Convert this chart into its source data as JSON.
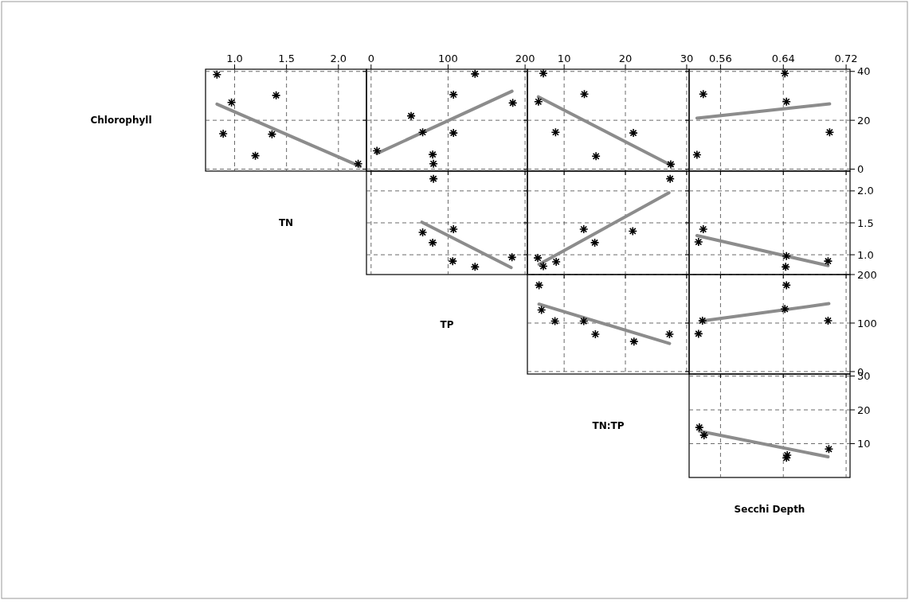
{
  "chart_data": [
    {
      "type": "scatter",
      "ylabel": "Chlorophyll",
      "xlim": [
        0.72,
        2.27
      ],
      "xticks": [
        {
          "value": 1,
          "label": "1.0"
        },
        1.5,
        {
          "value": 2,
          "label": "2.0"
        }
      ],
      "ylim": [
        -0.8,
        40.9
      ],
      "yticks": [
        0,
        20,
        40
      ],
      "tick_labels": "x",
      "grid": true,
      "series": [
        {
          "marker": "cross",
          "color": "#000000",
          "x": [
            0.83,
            0.97,
            1.4,
            0.89,
            1.36,
            1.2,
            2.19
          ],
          "values": [
            38.7,
            27.3,
            30.2,
            14.5,
            14.3,
            5.5,
            2.2
          ]
        },
        {
          "type": "line",
          "color": "#8c8c8c",
          "x": [
            0.83,
            2.21
          ],
          "values": [
            26.6,
            1.1
          ]
        }
      ]
    },
    {
      "type": "scatter",
      "xlim": [
        -6,
        203
      ],
      "xticks": [
        0,
        100,
        200
      ],
      "ylim": [
        -0.8,
        40.9
      ],
      "yticks": [
        0,
        20,
        40
      ],
      "tick_labels": "x",
      "grid": true,
      "series": [
        {
          "marker": "cross",
          "color": "#000000",
          "x": [
            7.6,
            52,
            67,
            107,
            107,
            135,
            184,
            80,
            81
          ],
          "values": [
            7.5,
            21.8,
            15.1,
            30.5,
            14.8,
            39,
            27.1,
            6,
            2.2
          ]
        },
        {
          "type": "line",
          "color": "#8c8c8c",
          "x": [
            7.6,
            183
          ],
          "values": [
            6.4,
            31.9
          ]
        }
      ]
    },
    {
      "type": "scatter",
      "xlim": [
        4,
        30.4
      ],
      "xticks": [
        10,
        20,
        30
      ],
      "ylim": [
        -0.8,
        40.9
      ],
      "yticks": [
        0,
        20,
        40
      ],
      "tick_labels": "x",
      "grid": true,
      "series": [
        {
          "marker": "cross",
          "color": "#000000",
          "x": [
            6.6,
            13.3,
            5.8,
            8.6,
            21.3,
            15.2,
            27.4
          ],
          "values": [
            39.2,
            30.7,
            27.6,
            15.1,
            14.8,
            5.3,
            2
          ]
        },
        {
          "type": "line",
          "color": "#8c8c8c",
          "x": [
            5.8,
            27.6
          ],
          "values": [
            29.6,
            1.4
          ]
        }
      ]
    },
    {
      "type": "scatter",
      "xlim": [
        0.52,
        0.725
      ],
      "xticks": [
        0.56,
        0.64,
        0.72
      ],
      "ylim": [
        -0.8,
        40.9
      ],
      "yticks": [
        0,
        20,
        40
      ],
      "grid": true,
      "series": [
        {
          "marker": "cross",
          "color": "#000000",
          "x": [
            0.538,
            0.642,
            0.644,
            0.699,
            0.53
          ],
          "values": [
            30.7,
            39.2,
            27.6,
            15.1,
            5.9
          ]
        },
        {
          "type": "line",
          "color": "#8c8c8c",
          "x": [
            0.53,
            0.699
          ],
          "values": [
            20.9,
            26.7
          ]
        }
      ]
    },
    {
      "type": "scatter",
      "ylabel": "TN",
      "xlim": [
        -6,
        203
      ],
      "xticks": [
        0,
        100,
        200
      ],
      "ylim": [
        0.69,
        2.31
      ],
      "yticks": [
        1,
        1.5,
        2
      ],
      "tick_labels": false,
      "grid": true,
      "series": [
        {
          "marker": "cross",
          "color": "#000000",
          "x": [
            81,
            67,
            80,
            107,
            106,
            135,
            183
          ],
          "values": [
            2.19,
            1.35,
            1.19,
            1.4,
            0.9,
            0.81,
            0.96
          ]
        },
        {
          "type": "line",
          "color": "#8c8c8c",
          "x": [
            66,
            182
          ],
          "values": [
            1.51,
            0.8
          ]
        }
      ]
    },
    {
      "type": "scatter",
      "xlim": [
        4,
        30.4
      ],
      "xticks": [
        10,
        20,
        30
      ],
      "ylim": [
        0.69,
        2.31
      ],
      "yticks": [
        1,
        1.5,
        2
      ],
      "tick_labels": false,
      "grid": true,
      "series": [
        {
          "marker": "cross",
          "color": "#000000",
          "x": [
            5.7,
            6.6,
            8.7,
            13.2,
            15,
            21.2,
            27.3
          ],
          "values": [
            0.95,
            0.82,
            0.89,
            1.4,
            1.19,
            1.37,
            2.19
          ]
        },
        {
          "type": "line",
          "color": "#8c8c8c",
          "x": [
            5.9,
            27.1
          ],
          "values": [
            0.85,
            1.97
          ]
        }
      ]
    },
    {
      "type": "scatter",
      "xlim": [
        0.52,
        0.725
      ],
      "xticks": [
        0.56,
        0.64,
        0.72
      ],
      "ylim": [
        0.69,
        2.31
      ],
      "yticks": [
        {
          "value": 1,
          "label": "1.0"
        },
        1.5,
        {
          "value": 2,
          "label": "2.0"
        }
      ],
      "tick_labels": "y",
      "grid": true,
      "series": [
        {
          "marker": "cross",
          "color": "#000000",
          "x": [
            0.538,
            0.532,
            0.644,
            0.643,
            0.697
          ],
          "values": [
            1.4,
            1.2,
            0.98,
            0.81,
            0.9
          ]
        },
        {
          "type": "line",
          "color": "#8c8c8c",
          "x": [
            0.53,
            0.697
          ],
          "values": [
            1.3,
            0.83
          ]
        }
      ]
    },
    {
      "type": "scatter",
      "ylabel": "TP",
      "xlim": [
        4,
        30.4
      ],
      "xticks": [
        10,
        20,
        30
      ],
      "ylim": [
        -5,
        200
      ],
      "yticks": [
        0,
        100,
        200
      ],
      "tick_labels": false,
      "grid": true,
      "series": [
        {
          "marker": "cross",
          "color": "#000000",
          "x": [
            5.9,
            6.3,
            8.5,
            13.2,
            15.1,
            21.4,
            27.2
          ],
          "values": [
            178,
            127,
            104,
            104,
            77,
            62,
            77
          ]
        },
        {
          "type": "line",
          "color": "#8c8c8c",
          "x": [
            5.9,
            27.2
          ],
          "values": [
            139,
            58
          ]
        }
      ]
    },
    {
      "type": "scatter",
      "xlim": [
        0.52,
        0.725
      ],
      "xticks": [
        0.56,
        0.64,
        0.72
      ],
      "ylim": [
        -5,
        200
      ],
      "yticks": [
        0,
        100,
        200
      ],
      "tick_labels": "y",
      "grid": true,
      "series": [
        {
          "marker": "cross",
          "color": "#000000",
          "x": [
            0.644,
            0.642,
            0.537,
            0.532,
            0.697
          ],
          "values": [
            178,
            129,
            105,
            78,
            105
          ]
        },
        {
          "type": "line",
          "color": "#8c8c8c",
          "x": [
            0.535,
            0.698
          ],
          "values": [
            104,
            140
          ]
        }
      ]
    },
    {
      "type": "scatter",
      "ylabel": "TN:TP",
      "xlabel": "Secchi Depth",
      "xlim": [
        0.52,
        0.725
      ],
      "xticks": [
        0.56,
        0.64,
        0.72
      ],
      "ylim": [
        0,
        30.6
      ],
      "yticks": [
        10,
        20,
        30
      ],
      "tick_labels": "y",
      "grid": true,
      "series": [
        {
          "marker": "cross",
          "color": "#000000",
          "x": [
            0.533,
            0.539,
            0.644,
            0.645,
            0.698
          ],
          "values": [
            14.8,
            12.5,
            5.8,
            6.6,
            8.4
          ]
        },
        {
          "type": "line",
          "color": "#8c8c8c",
          "x": [
            0.533,
            0.697
          ],
          "values": [
            13.7,
            6.1
          ]
        }
      ]
    }
  ]
}
